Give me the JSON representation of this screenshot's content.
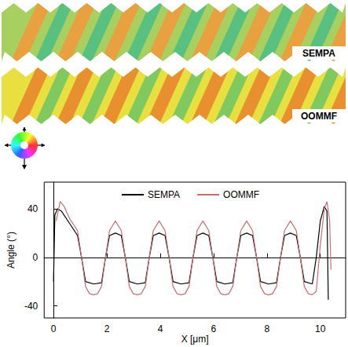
{
  "image_labels": [
    "SEMPA",
    "OOMMF"
  ],
  "chart_data": {
    "type": "line",
    "x_label": "X [μm]",
    "y_label": "Angle (°)",
    "xlim": [
      -0.35,
      10.95
    ],
    "xticks": [
      0,
      2,
      4,
      6,
      8,
      10
    ],
    "ylim": [
      -50,
      62
    ],
    "yticks": [
      -40,
      0,
      40
    ],
    "grid": false,
    "legend": "top",
    "series": [
      {
        "name": "SEMPA",
        "color": "#000000",
        "x": [
          0.0,
          0.05,
          0.15,
          0.3,
          0.6,
          0.9,
          1.05,
          1.2,
          1.5,
          1.8,
          1.95,
          2.1,
          2.32,
          2.54,
          2.69,
          2.84,
          3.14,
          3.44,
          3.59,
          3.74,
          3.96,
          4.18,
          4.33,
          4.48,
          4.78,
          5.08,
          5.23,
          5.38,
          5.6,
          5.82,
          5.97,
          6.12,
          6.42,
          6.72,
          6.87,
          7.02,
          7.24,
          7.46,
          7.61,
          7.76,
          8.06,
          8.36,
          8.51,
          8.66,
          8.88,
          9.1,
          9.25,
          9.4,
          9.7,
          9.85,
          10.0,
          10.15,
          10.25,
          10.3
        ],
        "values": [
          -20,
          35,
          40,
          38,
          28,
          18,
          0,
          -20,
          -22,
          -21,
          0,
          18,
          20,
          18,
          0,
          -20,
          -22,
          -21,
          0,
          18,
          20,
          18,
          0,
          -20,
          -22,
          -21,
          0,
          18,
          20,
          18,
          0,
          -20,
          -22,
          -21,
          0,
          18,
          20,
          18,
          0,
          -20,
          -22,
          -21,
          0,
          18,
          20,
          18,
          0,
          -20,
          -22,
          0,
          30,
          42,
          38,
          -35
        ]
      },
      {
        "name": "OOMMF",
        "color": "#c87070",
        "x": [
          0.1,
          0.25,
          0.4,
          0.6,
          0.9,
          1.05,
          1.2,
          1.35,
          1.5,
          1.65,
          1.8,
          1.95,
          2.1,
          2.32,
          2.54,
          2.69,
          2.84,
          2.99,
          3.14,
          3.29,
          3.44,
          3.59,
          3.74,
          3.96,
          4.18,
          4.33,
          4.48,
          4.63,
          4.78,
          4.93,
          5.08,
          5.23,
          5.38,
          5.6,
          5.82,
          5.97,
          6.12,
          6.27,
          6.42,
          6.57,
          6.72,
          6.87,
          7.02,
          7.24,
          7.46,
          7.61,
          7.76,
          7.91,
          8.06,
          8.21,
          8.36,
          8.51,
          8.66,
          8.88,
          9.1,
          9.25,
          9.4,
          9.55,
          9.7,
          9.85,
          10.0,
          10.15,
          10.25,
          10.35,
          10.4
        ],
        "values": [
          30,
          46,
          42,
          32,
          22,
          0,
          -24,
          -30,
          -31,
          -30,
          -24,
          0,
          22,
          30,
          22,
          0,
          -24,
          -30,
          -31,
          -30,
          -24,
          0,
          22,
          30,
          22,
          0,
          -24,
          -30,
          -31,
          -30,
          -24,
          0,
          22,
          30,
          22,
          0,
          -24,
          -30,
          -31,
          -30,
          -24,
          0,
          22,
          30,
          22,
          0,
          -24,
          -30,
          -31,
          -30,
          -24,
          0,
          22,
          30,
          22,
          0,
          -24,
          -30,
          -31,
          -28,
          10,
          40,
          46,
          30,
          -10
        ]
      }
    ]
  }
}
